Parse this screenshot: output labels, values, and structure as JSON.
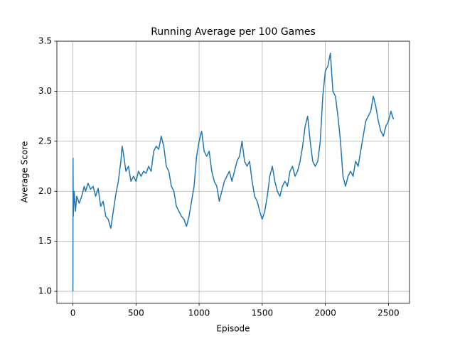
{
  "chart_data": {
    "type": "line",
    "title": "Running Average per 100 Games",
    "xlabel": "Episode",
    "ylabel": "Average Score",
    "x": [
      0,
      1,
      3,
      10,
      20,
      30,
      50,
      70,
      90,
      100,
      120,
      140,
      160,
      180,
      200,
      220,
      240,
      260,
      280,
      300,
      320,
      340,
      360,
      380,
      390,
      400,
      420,
      440,
      460,
      480,
      500,
      520,
      540,
      560,
      580,
      600,
      620,
      640,
      660,
      680,
      700,
      720,
      740,
      760,
      780,
      800,
      820,
      840,
      860,
      880,
      900,
      920,
      940,
      960,
      980,
      1000,
      1020,
      1040,
      1060,
      1080,
      1100,
      1120,
      1140,
      1160,
      1180,
      1200,
      1220,
      1240,
      1260,
      1280,
      1300,
      1320,
      1340,
      1360,
      1380,
      1400,
      1420,
      1440,
      1460,
      1480,
      1500,
      1520,
      1540,
      1560,
      1580,
      1600,
      1620,
      1640,
      1660,
      1680,
      1700,
      1720,
      1740,
      1760,
      1780,
      1800,
      1820,
      1840,
      1860,
      1880,
      1900,
      1920,
      1940,
      1960,
      1980,
      2000,
      2020,
      2040,
      2060,
      2080,
      2100,
      2120,
      2140,
      2160,
      2180,
      2200,
      2220,
      2240,
      2260,
      2280,
      2300,
      2320,
      2340,
      2360,
      2380,
      2400,
      2420,
      2440,
      2460,
      2480,
      2500,
      2520,
      2540
    ],
    "series": [
      {
        "name": "Average Score",
        "color": "#1f77b4",
        "values": [
          1.0,
          2.33,
          1.75,
          2.0,
          1.8,
          1.95,
          1.88,
          1.95,
          2.05,
          2.0,
          2.08,
          2.02,
          2.05,
          1.95,
          2.03,
          1.85,
          1.9,
          1.75,
          1.72,
          1.63,
          1.8,
          1.97,
          2.1,
          2.3,
          2.45,
          2.38,
          2.2,
          2.25,
          2.1,
          2.15,
          2.1,
          2.2,
          2.15,
          2.2,
          2.18,
          2.25,
          2.2,
          2.4,
          2.45,
          2.42,
          2.55,
          2.45,
          2.25,
          2.2,
          2.05,
          2.0,
          1.85,
          1.8,
          1.75,
          1.72,
          1.65,
          1.75,
          1.9,
          2.05,
          2.35,
          2.5,
          2.6,
          2.4,
          2.35,
          2.4,
          2.2,
          2.1,
          2.05,
          1.9,
          2.0,
          2.1,
          2.15,
          2.2,
          2.1,
          2.2,
          2.3,
          2.35,
          2.5,
          2.3,
          2.25,
          2.3,
          2.1,
          1.95,
          1.9,
          1.8,
          1.72,
          1.8,
          1.95,
          2.15,
          2.25,
          2.1,
          2.0,
          1.95,
          2.05,
          2.1,
          2.05,
          2.2,
          2.25,
          2.15,
          2.2,
          2.3,
          2.45,
          2.65,
          2.75,
          2.5,
          2.3,
          2.25,
          2.3,
          2.5,
          2.95,
          3.2,
          3.25,
          3.38,
          3.0,
          2.95,
          2.75,
          2.5,
          2.15,
          2.05,
          2.15,
          2.2,
          2.15,
          2.3,
          2.25,
          2.4,
          2.55,
          2.7,
          2.75,
          2.8,
          2.95,
          2.85,
          2.7,
          2.6,
          2.55,
          2.65,
          2.7,
          2.8,
          2.72
        ]
      }
    ],
    "xlim": [
      -127,
      2667
    ],
    "xticks": [
      0,
      500,
      1000,
      1500,
      2000,
      2500
    ],
    "ylim": [
      0.88,
      3.5
    ],
    "yticks": [
      {
        "value": 1.0,
        "label": "1.0"
      },
      1.5,
      {
        "value": 2.0,
        "label": "2.0"
      },
      2.5,
      {
        "value": 3.0,
        "label": "3.0"
      },
      3.5
    ],
    "grid": true
  }
}
